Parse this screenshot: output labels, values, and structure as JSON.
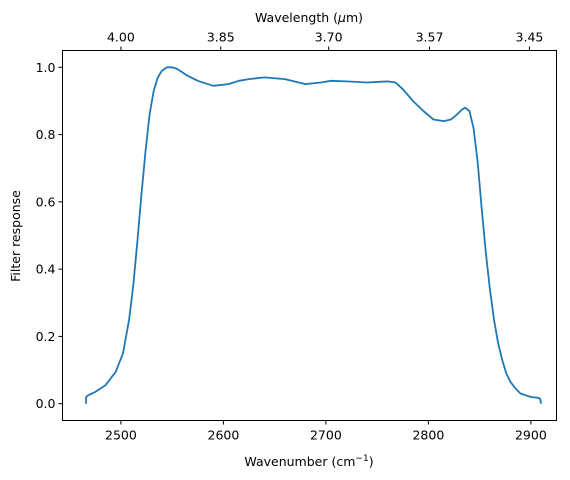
{
  "chart_data": {
    "type": "line",
    "xlabel": "Wavenumber (cm",
    "xlabel_sup": "−1",
    "xlabel_end": ")",
    "ylabel": "Filter response",
    "top_xlabel": "Wavelength (",
    "top_xlabel_mu": "μ",
    "top_xlabel_end": "m)",
    "xlim": [
      2443,
      2925
    ],
    "ylim": [
      -0.05,
      1.05
    ],
    "x_ticks": [
      2500,
      2600,
      2700,
      2800,
      2900
    ],
    "x_tick_labels": [
      "2500",
      "2600",
      "2700",
      "2800",
      "2900"
    ],
    "y_ticks": [
      0.0,
      0.2,
      0.4,
      0.6,
      0.8,
      1.0
    ],
    "y_tick_labels": [
      "0.0",
      "0.2",
      "0.4",
      "0.6",
      "0.8",
      "1.0"
    ],
    "top_ticks_wavenumber": [
      2500,
      2597.4,
      2702.7,
      2801.1,
      2898.6
    ],
    "top_tick_labels": [
      "4.00",
      "3.85",
      "3.70",
      "3.57",
      "3.45"
    ],
    "grid": false,
    "series": [
      {
        "color": "#1f77b4",
        "x": [
          2466,
          2466,
          2468,
          2475,
          2485,
          2495,
          2502,
          2508,
          2512,
          2516,
          2520,
          2524,
          2528,
          2532,
          2536,
          2540,
          2545,
          2550,
          2555,
          2560,
          2565,
          2575,
          2590,
          2605,
          2615,
          2625,
          2640,
          2660,
          2680,
          2695,
          2705,
          2720,
          2740,
          2760,
          2768,
          2775,
          2785,
          2795,
          2805,
          2815,
          2822,
          2828,
          2833,
          2836,
          2840,
          2844,
          2848,
          2852,
          2856,
          2860,
          2864,
          2868,
          2872,
          2876,
          2880,
          2885,
          2890,
          2895,
          2900,
          2906,
          2909,
          2910
        ],
        "y": [
          0.0,
          0.02,
          0.025,
          0.035,
          0.055,
          0.095,
          0.15,
          0.25,
          0.35,
          0.48,
          0.62,
          0.75,
          0.86,
          0.93,
          0.97,
          0.99,
          1.0,
          1.0,
          0.995,
          0.985,
          0.975,
          0.96,
          0.945,
          0.95,
          0.96,
          0.965,
          0.97,
          0.965,
          0.95,
          0.955,
          0.96,
          0.958,
          0.955,
          0.958,
          0.955,
          0.935,
          0.9,
          0.87,
          0.845,
          0.84,
          0.845,
          0.86,
          0.875,
          0.88,
          0.87,
          0.82,
          0.72,
          0.58,
          0.45,
          0.34,
          0.25,
          0.18,
          0.13,
          0.09,
          0.065,
          0.045,
          0.03,
          0.025,
          0.02,
          0.018,
          0.015,
          0.0
        ]
      }
    ]
  }
}
